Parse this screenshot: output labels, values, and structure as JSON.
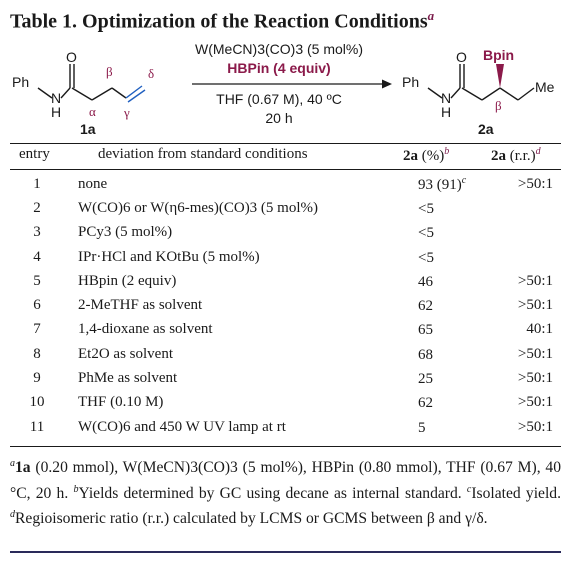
{
  "title": {
    "text": "Table 1. Optimization of the Reaction Conditions",
    "mark": "a"
  },
  "scheme": {
    "reactant_ph": "Ph",
    "reactant_o": "O",
    "reactant_n": "N",
    "reactant_h": "H",
    "label_alpha": "α",
    "label_beta": "β",
    "label_gamma": "γ",
    "label_delta": "δ",
    "reactant_id": "1a",
    "reagent_line1": "W(MeCN)3(CO)3 (5 mol%)",
    "reagent_line2": "HBPin (4 equiv)",
    "condition_line1": "THF (0.67 M), 40 ºC",
    "condition_line2": "20 h",
    "product_ph": "Ph",
    "product_o": "O",
    "product_n": "N",
    "product_h": "H",
    "product_bpin": "Bpin",
    "product_me": "Me",
    "product_beta": "β",
    "product_id": "2a",
    "colors": {
      "highlight": "#8b1a4a",
      "text": "#1a1a1a"
    }
  },
  "columns": {
    "entry": "entry",
    "deviation": "deviation from standard conditions",
    "yield_cpd": "2a",
    "yield_unit": " (%)",
    "yield_mark": "b",
    "rr_cpd": "2a",
    "rr_unit": " (r.r.)",
    "rr_mark": "d"
  },
  "rows": [
    {
      "entry": "1",
      "deviation": "none",
      "yield": "93 (91)",
      "yield_mark": "c",
      "rr": ">50:1"
    },
    {
      "entry": "2",
      "deviation": "W(CO)6 or W(η6-mes)(CO)3 (5 mol%)",
      "yield": "<5",
      "yield_mark": "",
      "rr": ""
    },
    {
      "entry": "3",
      "deviation": "PCy3 (5 mol%)",
      "yield": "<5",
      "yield_mark": "",
      "rr": ""
    },
    {
      "entry": "4",
      "deviation": "IPr·HCl and KOtBu (5 mol%)",
      "yield": "<5",
      "yield_mark": "",
      "rr": ""
    },
    {
      "entry": "5",
      "deviation": "HBpin (2 equiv)",
      "yield": "46",
      "yield_mark": "",
      "rr": ">50:1"
    },
    {
      "entry": "6",
      "deviation": "2-MeTHF as solvent",
      "yield": "62",
      "yield_mark": "",
      "rr": ">50:1"
    },
    {
      "entry": "7",
      "deviation": "1,4-dioxane as solvent",
      "yield": "65",
      "yield_mark": "",
      "rr": "40:1"
    },
    {
      "entry": "8",
      "deviation": "Et2O as solvent",
      "yield": "68",
      "yield_mark": "",
      "rr": ">50:1"
    },
    {
      "entry": "9",
      "deviation": "PhMe as solvent",
      "yield": "25",
      "yield_mark": "",
      "rr": ">50:1"
    },
    {
      "entry": "10",
      "deviation": "THF (0.10 M)",
      "yield": "62",
      "yield_mark": "",
      "rr": ">50:1"
    },
    {
      "entry": "11",
      "deviation": "W(CO)6 and 450 W UV lamp at rt",
      "yield": "5",
      "yield_mark": "",
      "rr": ">50:1"
    }
  ],
  "footnotes": {
    "a_mark": "a",
    "a_cpd": "1a",
    "a_text": " (0.20 mmol), W(MeCN)3(CO)3 (5 mol%), HBPin (0.80 mmol), THF (0.67 M), 40 °C, 20 h.",
    "b_mark": "b",
    "b_text": "Yields determined by GC using decane as internal standard.",
    "c_mark": "c",
    "c_text": "Isolated yield.",
    "d_mark": "d",
    "d_text": "Regioisomeric ratio (r.r.) calculated by LCMS or GCMS between β and γ/δ."
  }
}
